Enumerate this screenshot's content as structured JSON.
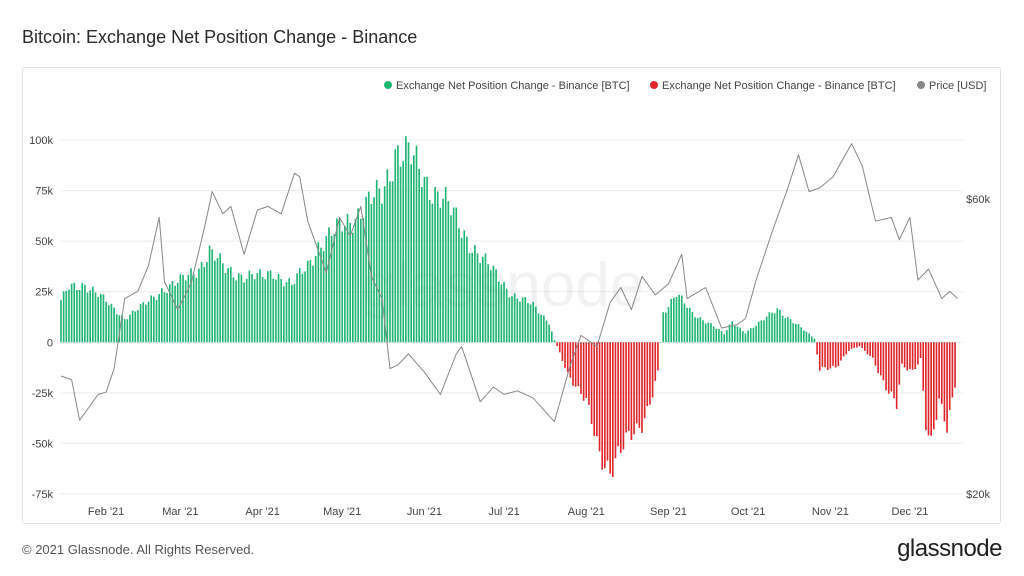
{
  "header": {
    "title": "Bitcoin: Exchange Net Position Change - Binance"
  },
  "footer": {
    "copyright": "© 2021 Glassnode. All Rights Reserved.",
    "brand": "glassnode"
  },
  "watermark": "glassnode",
  "colors": {
    "positive": "#1fb573",
    "negative": "#e0262b",
    "price": "#888888",
    "grid": "#ebebeb"
  },
  "chart_data": {
    "type": "bar",
    "legend": [
      {
        "name": "Exchange Net Position Change - Binance [BTC]",
        "color": "#1fb573"
      },
      {
        "name": "Exchange Net Position Change - Binance [BTC]",
        "color": "#e0262b"
      },
      {
        "name": "Price [USD]",
        "color": "#888888"
      }
    ],
    "legend_position": "top-right",
    "x_range": [
      "2021-01-15",
      "2021-12-21"
    ],
    "x_ticks": [
      {
        "date": "2021-02-01",
        "label": "Feb '21"
      },
      {
        "date": "2021-03-01",
        "label": "Mar '21"
      },
      {
        "date": "2021-04-01",
        "label": "Apr '21"
      },
      {
        "date": "2021-05-01",
        "label": "May '21"
      },
      {
        "date": "2021-06-01",
        "label": "Jun '21"
      },
      {
        "date": "2021-07-01",
        "label": "Jul '21"
      },
      {
        "date": "2021-08-01",
        "label": "Aug '21"
      },
      {
        "date": "2021-09-01",
        "label": "Sep '21"
      },
      {
        "date": "2021-10-01",
        "label": "Oct '21"
      },
      {
        "date": "2021-11-01",
        "label": "Nov '21"
      },
      {
        "date": "2021-12-01",
        "label": "Dec '21"
      }
    ],
    "y_left": {
      "range": [
        -75000,
        100000
      ],
      "ticks": [
        {
          "value": 100000,
          "label": "100k"
        },
        {
          "value": 75000,
          "label": "75k"
        },
        {
          "value": 50000,
          "label": "50k"
        },
        {
          "value": 25000,
          "label": "25k"
        },
        {
          "value": 0,
          "label": "0"
        },
        {
          "value": -25000,
          "label": "-25k"
        },
        {
          "value": -50000,
          "label": "-50k"
        },
        {
          "value": -75000,
          "label": "-75k"
        }
      ]
    },
    "y_right": {
      "range": [
        20000,
        68000
      ],
      "ticks": [
        {
          "value": 60000,
          "label": "$60k"
        },
        {
          "value": 20000,
          "label": "$20k"
        }
      ]
    },
    "grid": true,
    "net_position_anchors": [
      [
        "2021-01-15",
        20000
      ],
      [
        "2021-01-18",
        27000
      ],
      [
        "2021-01-24",
        29000
      ],
      [
        "2021-02-01",
        20000
      ],
      [
        "2021-02-08",
        12000
      ],
      [
        "2021-02-15",
        18000
      ],
      [
        "2021-02-22",
        26000
      ],
      [
        "2021-03-01",
        30000
      ],
      [
        "2021-03-08",
        37000
      ],
      [
        "2021-03-12",
        45000
      ],
      [
        "2021-03-18",
        36000
      ],
      [
        "2021-03-25",
        33000
      ],
      [
        "2021-04-01",
        32000
      ],
      [
        "2021-04-05",
        35000
      ],
      [
        "2021-04-12",
        28000
      ],
      [
        "2021-04-18",
        38000
      ],
      [
        "2021-04-22",
        48000
      ],
      [
        "2021-04-28",
        54000
      ],
      [
        "2021-05-05",
        62000
      ],
      [
        "2021-05-12",
        70000
      ],
      [
        "2021-05-16",
        73000
      ],
      [
        "2021-05-19",
        85000
      ],
      [
        "2021-05-21",
        96000
      ],
      [
        "2021-05-26",
        93000
      ],
      [
        "2021-06-01",
        80000
      ],
      [
        "2021-06-08",
        72000
      ],
      [
        "2021-06-15",
        55000
      ],
      [
        "2021-06-22",
        43000
      ],
      [
        "2021-06-28",
        33000
      ],
      [
        "2021-07-04",
        24000
      ],
      [
        "2021-07-12",
        18000
      ],
      [
        "2021-07-18",
        10000
      ],
      [
        "2021-07-20",
        1000
      ],
      [
        "2021-07-21",
        -2000
      ],
      [
        "2021-07-25",
        -15000
      ],
      [
        "2021-08-01",
        -30000
      ],
      [
        "2021-08-06",
        -55000
      ],
      [
        "2021-08-10",
        -62000
      ],
      [
        "2021-08-16",
        -50000
      ],
      [
        "2021-08-22",
        -40000
      ],
      [
        "2021-08-26",
        -25000
      ],
      [
        "2021-08-28",
        -15000
      ],
      [
        "2021-08-30",
        15000
      ],
      [
        "2021-09-04",
        24000
      ],
      [
        "2021-09-10",
        14000
      ],
      [
        "2021-09-16",
        10000
      ],
      [
        "2021-09-22",
        4000
      ],
      [
        "2021-09-25",
        10000
      ],
      [
        "2021-09-30",
        5000
      ],
      [
        "2021-10-06",
        10000
      ],
      [
        "2021-10-12",
        17000
      ],
      [
        "2021-10-16",
        12000
      ],
      [
        "2021-10-22",
        6000
      ],
      [
        "2021-10-26",
        2000
      ],
      [
        "2021-10-28",
        -14000
      ],
      [
        "2021-11-03",
        -12000
      ],
      [
        "2021-11-08",
        -4000
      ],
      [
        "2021-11-12",
        -2000
      ],
      [
        "2021-11-17",
        -8000
      ],
      [
        "2021-11-22",
        -22000
      ],
      [
        "2021-11-26",
        -32000
      ],
      [
        "2021-11-28",
        -12000
      ],
      [
        "2021-12-02",
        -14000
      ],
      [
        "2021-12-05",
        -8000
      ],
      [
        "2021-12-07",
        -40000
      ],
      [
        "2021-12-09",
        -52000
      ],
      [
        "2021-12-12",
        -30000
      ],
      [
        "2021-12-15",
        -42000
      ],
      [
        "2021-12-18",
        -20000
      ]
    ],
    "price_series": [
      [
        "2021-01-15",
        36000
      ],
      [
        "2021-01-19",
        35500
      ],
      [
        "2021-01-22",
        30000
      ],
      [
        "2021-01-26",
        32000
      ],
      [
        "2021-01-29",
        33500
      ],
      [
        "2021-02-01",
        33800
      ],
      [
        "2021-02-04",
        37000
      ],
      [
        "2021-02-08",
        46500
      ],
      [
        "2021-02-13",
        47500
      ],
      [
        "2021-02-17",
        51000
      ],
      [
        "2021-02-21",
        57500
      ],
      [
        "2021-02-23",
        48800
      ],
      [
        "2021-02-28",
        45000
      ],
      [
        "2021-03-05",
        48500
      ],
      [
        "2021-03-10",
        56000
      ],
      [
        "2021-03-13",
        61000
      ],
      [
        "2021-03-17",
        58000
      ],
      [
        "2021-03-20",
        59000
      ],
      [
        "2021-03-25",
        52500
      ],
      [
        "2021-03-30",
        58500
      ],
      [
        "2021-04-03",
        59000
      ],
      [
        "2021-04-08",
        58000
      ],
      [
        "2021-04-13",
        63500
      ],
      [
        "2021-04-15",
        63000
      ],
      [
        "2021-04-18",
        57000
      ],
      [
        "2021-04-22",
        53000
      ],
      [
        "2021-04-25",
        50000
      ],
      [
        "2021-04-30",
        57500
      ],
      [
        "2021-05-04",
        55000
      ],
      [
        "2021-05-08",
        59000
      ],
      [
        "2021-05-12",
        49500
      ],
      [
        "2021-05-16",
        46500
      ],
      [
        "2021-05-19",
        37000
      ],
      [
        "2021-05-22",
        37500
      ],
      [
        "2021-05-26",
        39000
      ],
      [
        "2021-06-01",
        36500
      ],
      [
        "2021-06-07",
        33500
      ],
      [
        "2021-06-13",
        39000
      ],
      [
        "2021-06-15",
        40000
      ],
      [
        "2021-06-22",
        32500
      ],
      [
        "2021-06-27",
        34500
      ],
      [
        "2021-07-01",
        33500
      ],
      [
        "2021-07-06",
        34000
      ],
      [
        "2021-07-12",
        33000
      ],
      [
        "2021-07-20",
        29800
      ],
      [
        "2021-07-26",
        37500
      ],
      [
        "2021-07-30",
        41500
      ],
      [
        "2021-08-05",
        40000
      ],
      [
        "2021-08-10",
        46000
      ],
      [
        "2021-08-14",
        48000
      ],
      [
        "2021-08-18",
        45000
      ],
      [
        "2021-08-22",
        49500
      ],
      [
        "2021-08-27",
        47000
      ],
      [
        "2021-09-01",
        48500
      ],
      [
        "2021-09-06",
        52500
      ],
      [
        "2021-09-08",
        46500
      ],
      [
        "2021-09-15",
        48000
      ],
      [
        "2021-09-21",
        42500
      ],
      [
        "2021-09-27",
        43000
      ],
      [
        "2021-09-30",
        43800
      ],
      [
        "2021-10-04",
        49000
      ],
      [
        "2021-10-10",
        55500
      ],
      [
        "2021-10-16",
        61500
      ],
      [
        "2021-10-20",
        66000
      ],
      [
        "2021-10-24",
        61000
      ],
      [
        "2021-10-28",
        61500
      ],
      [
        "2021-11-02",
        63000
      ],
      [
        "2021-11-09",
        67500
      ],
      [
        "2021-11-13",
        64500
      ],
      [
        "2021-11-18",
        57000
      ],
      [
        "2021-11-24",
        57500
      ],
      [
        "2021-11-27",
        54500
      ],
      [
        "2021-12-01",
        57500
      ],
      [
        "2021-12-04",
        49000
      ],
      [
        "2021-12-08",
        50500
      ],
      [
        "2021-12-13",
        46500
      ],
      [
        "2021-12-16",
        47500
      ],
      [
        "2021-12-19",
        46500
      ]
    ]
  }
}
